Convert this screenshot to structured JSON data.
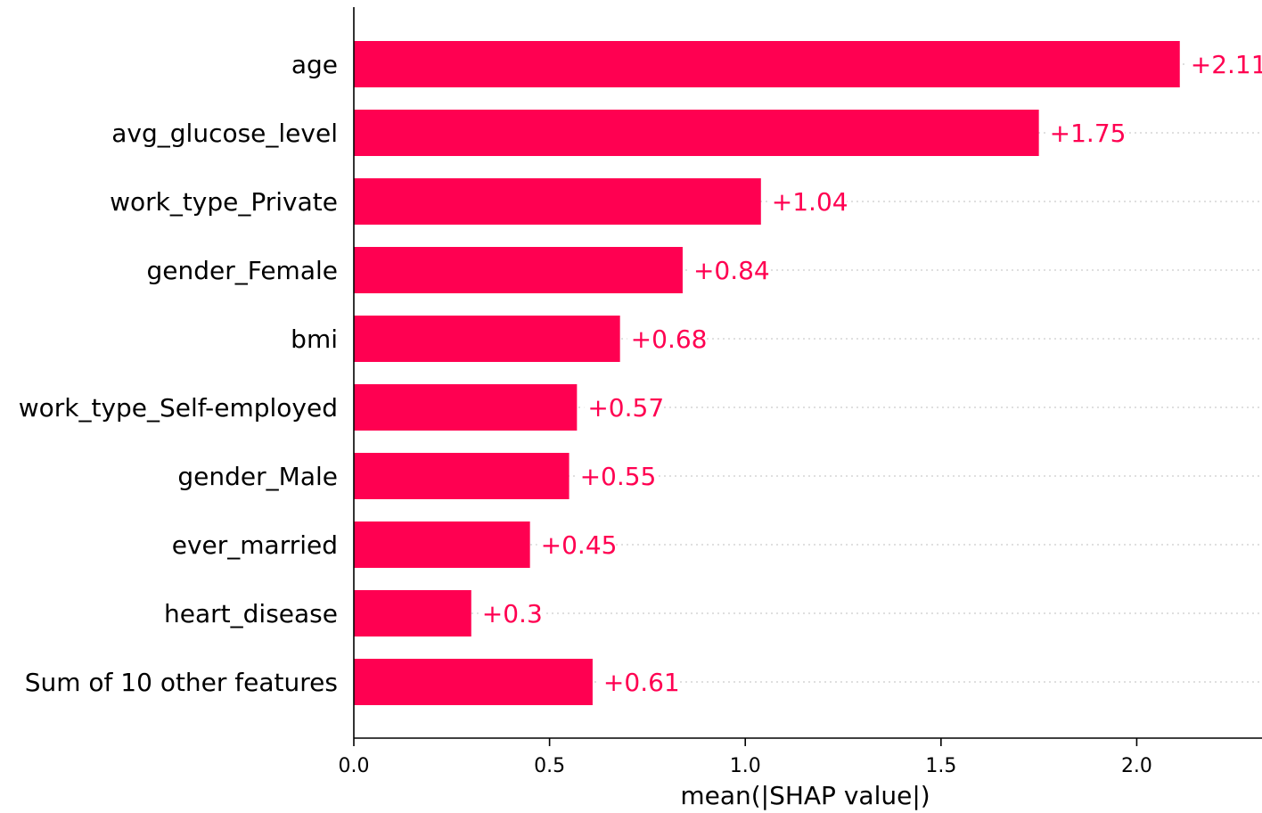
{
  "chart_data": {
    "type": "bar",
    "orientation": "horizontal",
    "title": "",
    "xlabel": "mean(|SHAP value|)",
    "ylabel": "",
    "xlim": [
      0.0,
      2.32
    ],
    "xticks": [
      0.0,
      0.5,
      1.0,
      1.5,
      2.0
    ],
    "xtick_labels": [
      "0.0",
      "0.5",
      "1.0",
      "1.5",
      "2.0"
    ],
    "grid": false,
    "bar_color": "#ff0051",
    "categories": [
      "age",
      "avg_glucose_level",
      "work_type_Private",
      "gender_Female",
      "bmi",
      "work_type_Self-employed",
      "gender_Male",
      "ever_married",
      "heart_disease",
      "Sum of 10 other features"
    ],
    "values": [
      2.11,
      1.75,
      1.04,
      0.84,
      0.68,
      0.57,
      0.55,
      0.45,
      0.3,
      0.61
    ],
    "value_labels": [
      "+2.11",
      "+1.75",
      "+1.04",
      "+0.84",
      "+0.68",
      "+0.57",
      "+0.55",
      "+0.45",
      "+0.3",
      "+0.61"
    ]
  }
}
